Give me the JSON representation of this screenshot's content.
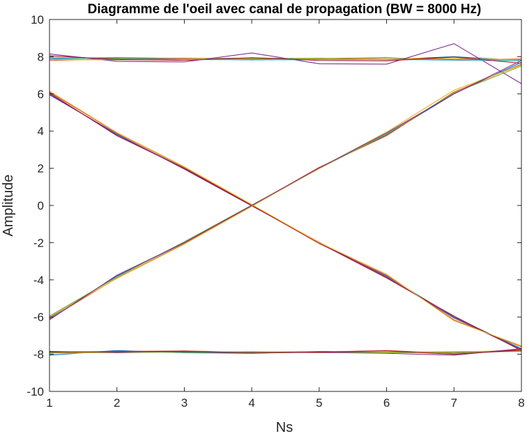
{
  "chart_data": {
    "type": "line",
    "title": "Diagramme de l'oeil avec canal de propagation (BW = 8000 Hz)",
    "xlabel": "Ns",
    "ylabel": "Amplitude",
    "xlim": [
      1,
      8
    ],
    "ylim": [
      -10,
      10
    ],
    "x_ticks": [
      1,
      2,
      3,
      4,
      5,
      6,
      7,
      8
    ],
    "y_ticks": [
      -10,
      -8,
      -6,
      -4,
      -2,
      0,
      2,
      4,
      6,
      8,
      10
    ],
    "grid": false,
    "legend": "none",
    "x": [
      1,
      2,
      3,
      4,
      5,
      6,
      7,
      8
    ],
    "series": [
      {
        "color": "#0072BD",
        "values": [
          7.9,
          7.95,
          7.9,
          7.92,
          7.9,
          7.85,
          8.0,
          7.8
        ]
      },
      {
        "color": "#D95319",
        "values": [
          7.8,
          7.88,
          7.92,
          7.86,
          7.9,
          7.95,
          7.82,
          7.88
        ]
      },
      {
        "color": "#EDB120",
        "values": [
          7.85,
          7.82,
          7.88,
          7.9,
          7.86,
          7.92,
          7.9,
          7.85
        ]
      },
      {
        "color": "#7E2F8E",
        "values": [
          8.15,
          7.75,
          7.72,
          8.2,
          7.62,
          7.6,
          8.7,
          6.55
        ]
      },
      {
        "color": "#77AC30",
        "values": [
          7.95,
          7.9,
          7.85,
          7.88,
          7.92,
          7.84,
          7.86,
          7.82
        ]
      },
      {
        "color": "#4DBEEE",
        "values": [
          7.88,
          7.84,
          7.86,
          7.82,
          7.84,
          7.86,
          7.8,
          7.78
        ]
      },
      {
        "color": "#A2142F",
        "values": [
          8.05,
          7.85,
          7.8,
          7.95,
          7.8,
          7.78,
          7.98,
          7.65
        ]
      },
      {
        "color": "#0072BD",
        "values": [
          6.0,
          3.8,
          2.0,
          0.0,
          -2.0,
          -3.8,
          -6.0,
          -7.7
        ]
      },
      {
        "color": "#D95319",
        "values": [
          6.1,
          3.9,
          2.05,
          0.02,
          -2.05,
          -3.75,
          -6.15,
          -7.6
        ]
      },
      {
        "color": "#7E2F8E",
        "values": [
          5.95,
          3.85,
          1.95,
          -0.02,
          -1.98,
          -3.85,
          -6.05,
          -7.75
        ]
      },
      {
        "color": "#A2142F",
        "values": [
          6.05,
          3.75,
          2.0,
          0.0,
          -2.02,
          -3.9,
          -5.95,
          -7.8
        ]
      },
      {
        "color": "#EDB120",
        "values": [
          6.15,
          3.92,
          2.08,
          0.05,
          -2.0,
          -3.7,
          -6.2,
          -7.55
        ]
      },
      {
        "color": "#0072BD",
        "values": [
          -6.05,
          -3.8,
          -2.0,
          0.0,
          2.0,
          3.8,
          6.0,
          7.7
        ]
      },
      {
        "color": "#D95319",
        "values": [
          -6.1,
          -3.9,
          -2.05,
          -0.02,
          2.05,
          3.75,
          6.1,
          7.6
        ]
      },
      {
        "color": "#77AC30",
        "values": [
          -5.95,
          -3.85,
          -1.95,
          0.02,
          1.98,
          3.85,
          6.05,
          7.5
        ]
      },
      {
        "color": "#EDB120",
        "values": [
          -6.0,
          -3.92,
          -2.08,
          -0.05,
          2.0,
          3.95,
          6.2,
          7.55
        ]
      },
      {
        "color": "#7E2F8E",
        "values": [
          -6.15,
          -3.75,
          -2.0,
          0.0,
          2.02,
          3.9,
          6.0,
          7.8
        ]
      },
      {
        "color": "#0072BD",
        "values": [
          -8.05,
          -7.8,
          -7.92,
          -7.95,
          -7.85,
          -7.9,
          -7.88,
          -7.8
        ]
      },
      {
        "color": "#D95319",
        "values": [
          -7.9,
          -7.85,
          -7.82,
          -7.9,
          -7.88,
          -7.8,
          -7.95,
          -7.75
        ]
      },
      {
        "color": "#EDB120",
        "values": [
          -7.95,
          -7.9,
          -7.88,
          -7.85,
          -7.92,
          -7.88,
          -7.86,
          -7.82
        ]
      },
      {
        "color": "#7E2F8E",
        "values": [
          -7.85,
          -7.92,
          -7.86,
          -7.92,
          -7.9,
          -7.95,
          -8.05,
          -7.7
        ]
      },
      {
        "color": "#77AC30",
        "values": [
          -7.92,
          -7.88,
          -7.9,
          -7.88,
          -7.86,
          -7.92,
          -7.9,
          -7.85
        ]
      },
      {
        "color": "#A2142F",
        "values": [
          -7.88,
          -7.86,
          -7.84,
          -7.94,
          -7.88,
          -7.82,
          -8.0,
          -7.78
        ]
      }
    ]
  }
}
